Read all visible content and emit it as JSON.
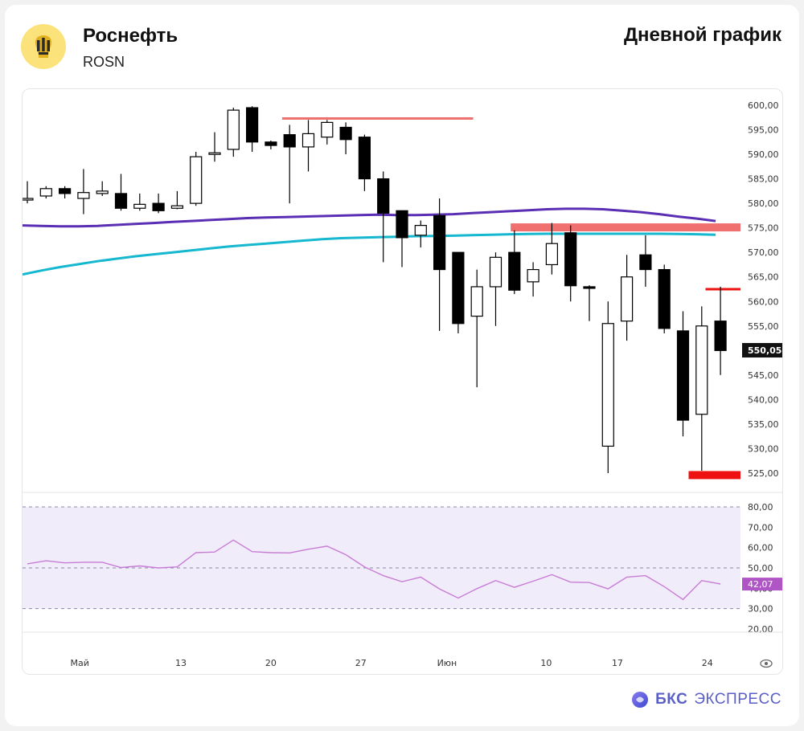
{
  "header": {
    "company": "Роснефть",
    "ticker": "ROSN",
    "chart_type": "Дневной график"
  },
  "footer": {
    "brand_bold": "БКС",
    "brand_rest": "ЭКСПРЕСС"
  },
  "colors": {
    "bull_fill": "#ffffff",
    "bear_fill": "#000000",
    "ma_slow": "#16b8cf",
    "ma_fast": "#5b2fb4",
    "resistance": "#f07070",
    "support": "#ee1111",
    "rsi_line": "#c77dd6",
    "rsi_band": "#f1ecfa",
    "rsi_badge": "#b055c6"
  },
  "chart_data": [
    {
      "type": "candlestick",
      "title": "Роснефть ROSN — Дневной график",
      "price_axis": {
        "min": 520,
        "max": 603,
        "ticks": [
          "600,00",
          "595,00",
          "590,00",
          "585,00",
          "580,00",
          "575,00",
          "570,00",
          "565,00",
          "560,00",
          "555,00",
          "550,00",
          "545,00",
          "540,00",
          "535,00",
          "530,00",
          "525,00"
        ],
        "tick_values": [
          600,
          595,
          590,
          585,
          580,
          575,
          570,
          565,
          560,
          555,
          550,
          545,
          540,
          535,
          530,
          525
        ]
      },
      "x_axis": {
        "labels": [
          "Май",
          "13",
          "20",
          "27",
          "Июн",
          "10",
          "17",
          "24"
        ],
        "label_index": [
          2.8,
          8.2,
          13.0,
          17.8,
          22.4,
          27.7,
          31.5,
          36.3
        ]
      },
      "last_price_label": "550,05",
      "last_price": 550.05,
      "candles": [
        {
          "o": 581.0,
          "h": 584.5,
          "l": 580.0,
          "c": 581.0
        },
        {
          "o": 581.5,
          "h": 583.5,
          "l": 581.0,
          "c": 583.0
        },
        {
          "o": 583.0,
          "h": 583.5,
          "l": 581.0,
          "c": 582.0
        },
        {
          "o": 581.0,
          "h": 587.0,
          "l": 577.8,
          "c": 582.2
        },
        {
          "o": 582.0,
          "h": 584.5,
          "l": 581.5,
          "c": 582.5
        },
        {
          "o": 582.0,
          "h": 586.0,
          "l": 578.5,
          "c": 579.0
        },
        {
          "o": 579.0,
          "h": 582.0,
          "l": 578.5,
          "c": 579.8
        },
        {
          "o": 580.0,
          "h": 582.0,
          "l": 578.0,
          "c": 578.5
        },
        {
          "o": 579.0,
          "h": 582.5,
          "l": 578.8,
          "c": 579.5
        },
        {
          "o": 580.0,
          "h": 590.5,
          "l": 579.5,
          "c": 589.5
        },
        {
          "o": 590.0,
          "h": 594.5,
          "l": 588.5,
          "c": 590.3
        },
        {
          "o": 591.0,
          "h": 599.5,
          "l": 589.5,
          "c": 599.0
        },
        {
          "o": 599.5,
          "h": 599.8,
          "l": 590.5,
          "c": 592.5
        },
        {
          "o": 592.5,
          "h": 592.8,
          "l": 591.0,
          "c": 591.8
        },
        {
          "o": 594.0,
          "h": 596.0,
          "l": 580.0,
          "c": 591.5
        },
        {
          "o": 591.5,
          "h": 597.0,
          "l": 586.5,
          "c": 594.2
        },
        {
          "o": 593.5,
          "h": 597.0,
          "l": 592.0,
          "c": 596.5
        },
        {
          "o": 595.5,
          "h": 596.5,
          "l": 590.0,
          "c": 593.0
        },
        {
          "o": 593.5,
          "h": 594.0,
          "l": 582.5,
          "c": 585.0
        },
        {
          "o": 585.0,
          "h": 586.5,
          "l": 568.0,
          "c": 578.0
        },
        {
          "o": 578.5,
          "h": 578.5,
          "l": 567.0,
          "c": 573.0
        },
        {
          "o": 573.5,
          "h": 576.5,
          "l": 571.0,
          "c": 575.5
        },
        {
          "o": 577.5,
          "h": 581.0,
          "l": 554.0,
          "c": 566.5
        },
        {
          "o": 570.0,
          "h": 570.0,
          "l": 553.5,
          "c": 555.5
        },
        {
          "o": 557.0,
          "h": 566.5,
          "l": 542.5,
          "c": 563.0
        },
        {
          "o": 563.0,
          "h": 570.0,
          "l": 555.0,
          "c": 569.0
        },
        {
          "o": 570.0,
          "h": 574.5,
          "l": 561.5,
          "c": 562.3
        },
        {
          "o": 564.0,
          "h": 568.0,
          "l": 561.0,
          "c": 566.5
        },
        {
          "o": 567.5,
          "h": 576.0,
          "l": 565.5,
          "c": 571.8
        },
        {
          "o": 574.0,
          "h": 575.5,
          "l": 560.0,
          "c": 563.2
        },
        {
          "o": 563.0,
          "h": 563.3,
          "l": 556.0,
          "c": 562.8
        },
        {
          "o": 530.5,
          "h": 560.0,
          "l": 525.0,
          "c": 555.5
        },
        {
          "o": 556.0,
          "h": 569.5,
          "l": 552.0,
          "c": 565.0
        },
        {
          "o": 569.5,
          "h": 573.5,
          "l": 563.0,
          "c": 566.5
        },
        {
          "o": 566.5,
          "h": 567.5,
          "l": 553.5,
          "c": 554.5
        },
        {
          "o": 554.0,
          "h": 558.0,
          "l": 532.5,
          "c": 535.8
        },
        {
          "o": 537.0,
          "h": 559.0,
          "l": 525.5,
          "c": 555.0
        },
        {
          "o": 556.0,
          "h": 563.0,
          "l": 545.0,
          "c": 550.0
        }
      ],
      "ma_slow": [
        565.5,
        566.3,
        567.0,
        567.6,
        568.2,
        568.7,
        569.2,
        569.6,
        570.0,
        570.4,
        570.8,
        571.2,
        571.5,
        571.8,
        572.1,
        572.4,
        572.7,
        572.9,
        573.0,
        573.1,
        573.2,
        573.3,
        573.35,
        573.4,
        573.5,
        573.6,
        573.7,
        573.75,
        573.8,
        573.8,
        573.8,
        573.8,
        573.8,
        573.8,
        573.8,
        573.75,
        573.7,
        573.6
      ],
      "ma_fast": [
        575.5,
        575.4,
        575.3,
        575.3,
        575.4,
        575.6,
        575.8,
        576.0,
        576.2,
        576.4,
        576.6,
        576.8,
        577.0,
        577.1,
        577.2,
        577.3,
        577.4,
        577.5,
        577.6,
        577.7,
        577.6,
        577.6,
        577.7,
        577.8,
        578.0,
        578.2,
        578.4,
        578.6,
        578.8,
        578.9,
        578.9,
        578.8,
        578.5,
        578.2,
        577.8,
        577.3,
        576.9,
        576.4
      ],
      "levels": [
        {
          "name": "resistance-top",
          "value": 597.3,
          "from": 13.6,
          "to": 23.8,
          "kind": "resistance"
        },
        {
          "name": "resistance-zone",
          "value": 575.1,
          "from": 25.8,
          "to": 40.8,
          "kind": "zone"
        },
        {
          "name": "resistance-near",
          "value": 562.5,
          "from": 36.2,
          "to": 40.8,
          "kind": "support"
        },
        {
          "name": "support-low",
          "value": 524.6,
          "from": 35.3,
          "to": 40.8,
          "kind": "support"
        }
      ]
    },
    {
      "type": "line",
      "title": "RSI",
      "ylim": [
        20,
        80
      ],
      "y_ticks": [
        "80,00",
        "70,00",
        "60,00",
        "50,00",
        "40,00",
        "30,00",
        "20,00"
      ],
      "y_tick_values": [
        80,
        70,
        60,
        50,
        40,
        30,
        20
      ],
      "bands": [
        30,
        50,
        80
      ],
      "last_value_label": "42,07",
      "last_value": 42.07,
      "values": [
        52,
        53.5,
        52.5,
        52.8,
        52.8,
        50.2,
        51,
        50,
        50.5,
        57.5,
        57.8,
        63.7,
        58,
        57.5,
        57.4,
        59.2,
        60.7,
        56.5,
        50.5,
        46.2,
        43.2,
        45.5,
        39.7,
        35.2,
        39.8,
        43.8,
        40.5,
        43.5,
        46.7,
        43,
        42.8,
        39.7,
        45.5,
        46.2,
        40.8,
        34.5,
        43.8,
        42.1
      ],
      "x_index": [
        0,
        1,
        2,
        3,
        4,
        5,
        6,
        7,
        8,
        9,
        10,
        11,
        12,
        13,
        14,
        15,
        16,
        17,
        18,
        19,
        20,
        21,
        22,
        23,
        24,
        25,
        26,
        27,
        28,
        29,
        30,
        31,
        32,
        33,
        34,
        35,
        36,
        37
      ]
    }
  ]
}
